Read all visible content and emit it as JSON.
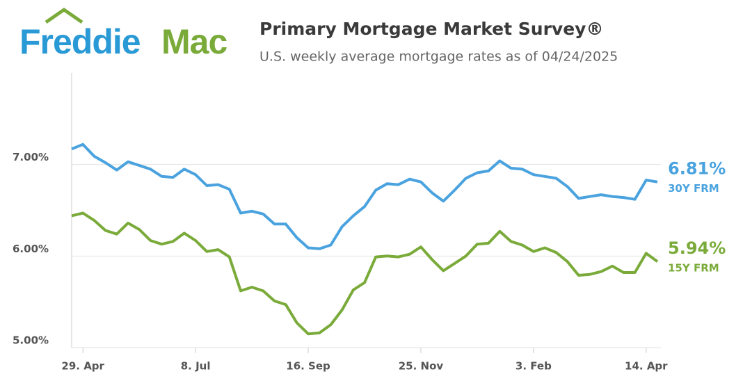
{
  "brand": {
    "first": "Freddie",
    "second": "Mac"
  },
  "chart_data": {
    "type": "line",
    "title": "Primary Mortgage Market Survey®",
    "subtitle": "U.S. weekly average mortgage rates as of 04/24/2025",
    "categories": [
      null,
      "29. Apr",
      null,
      null,
      null,
      null,
      null,
      null,
      null,
      null,
      null,
      "8. Jul",
      null,
      null,
      null,
      null,
      null,
      null,
      null,
      null,
      null,
      "16. Sep",
      null,
      null,
      null,
      null,
      null,
      null,
      null,
      null,
      null,
      "25. Nov",
      null,
      null,
      null,
      null,
      null,
      null,
      null,
      null,
      null,
      "3. Feb",
      null,
      null,
      null,
      null,
      null,
      null,
      null,
      null,
      null,
      "14. Apr",
      null
    ],
    "series": [
      {
        "name": "30Y FRM",
        "color": "#4aa3df",
        "end_label": "6.81%",
        "values": [
          7.17,
          7.22,
          7.09,
          7.02,
          6.94,
          7.03,
          6.99,
          6.95,
          6.87,
          6.86,
          6.95,
          6.89,
          6.77,
          6.78,
          6.73,
          6.47,
          6.49,
          6.46,
          6.35,
          6.35,
          6.2,
          6.09,
          6.08,
          6.12,
          6.32,
          6.44,
          6.54,
          6.72,
          6.79,
          6.78,
          6.84,
          6.81,
          6.69,
          6.6,
          6.72,
          6.85,
          6.91,
          6.93,
          7.04,
          6.96,
          6.95,
          6.89,
          6.87,
          6.85,
          6.76,
          6.63,
          6.65,
          6.67,
          6.65,
          6.64,
          6.62,
          6.83,
          6.81
        ]
      },
      {
        "name": "15Y FRM",
        "color": "#7aab3a",
        "end_label": "5.94%",
        "values": [
          6.44,
          6.47,
          6.39,
          6.28,
          6.24,
          6.36,
          6.29,
          6.17,
          6.13,
          6.16,
          6.25,
          6.17,
          6.05,
          6.07,
          5.99,
          5.62,
          5.66,
          5.62,
          5.51,
          5.47,
          5.27,
          5.15,
          5.16,
          5.25,
          5.41,
          5.63,
          5.71,
          5.99,
          6.0,
          5.99,
          6.02,
          6.1,
          5.96,
          5.84,
          5.92,
          6.0,
          6.13,
          6.14,
          6.27,
          6.16,
          6.12,
          6.05,
          6.09,
          6.04,
          5.94,
          5.79,
          5.8,
          5.83,
          5.89,
          5.82,
          5.82,
          6.03,
          5.94
        ]
      }
    ],
    "ylim": [
      5,
      8
    ],
    "yticks": [
      {
        "value": 5,
        "label": "5.00%"
      },
      {
        "value": 6,
        "label": "6.00%"
      },
      {
        "value": 7,
        "label": "7.00%"
      }
    ],
    "grid": true
  }
}
